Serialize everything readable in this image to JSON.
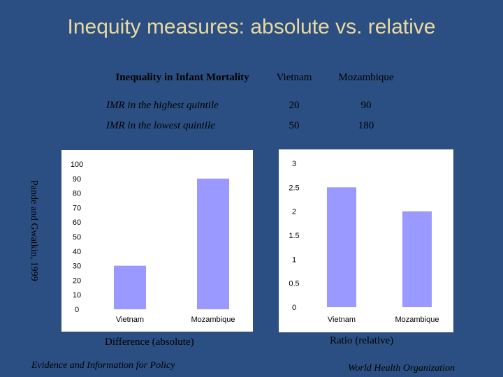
{
  "slide": {
    "title": "Inequity measures: absolute vs. relative",
    "side_note": "Pande and Gwatkin, 1999",
    "footer_left": "Evidence and Information for Policy",
    "footer_right": "World Health Organization"
  },
  "table": {
    "header": [
      "Inequality in Infant Mortality",
      "Vietnam",
      "Mozambique"
    ],
    "rows": [
      [
        "IMR in the highest quintile",
        "20",
        "90"
      ],
      [
        "IMR in the lowest quintile",
        "50",
        "180"
      ]
    ]
  },
  "chart_data": [
    {
      "type": "bar",
      "categories": [
        "Vietnam",
        "Mozambique"
      ],
      "values": [
        30,
        90
      ],
      "ylim": [
        0,
        100
      ],
      "yticks": [
        "0",
        "10",
        "20",
        "30",
        "40",
        "50",
        "60",
        "70",
        "80",
        "90",
        "100"
      ],
      "caption": "Difference (absolute)",
      "bar_color": "#9999ff",
      "grid": false
    },
    {
      "type": "bar",
      "categories": [
        "Vietnam",
        "Mozambique"
      ],
      "values": [
        2.5,
        2
      ],
      "ylim": [
        0,
        3
      ],
      "yticks": [
        "0",
        "0.5",
        "1",
        "1.5",
        "2",
        "2.5",
        "3"
      ],
      "caption": "Ratio (relative)",
      "bar_color": "#9999ff",
      "grid": false
    }
  ],
  "colors": {
    "background": "#2b4f82",
    "title": "#e8d9a0"
  }
}
